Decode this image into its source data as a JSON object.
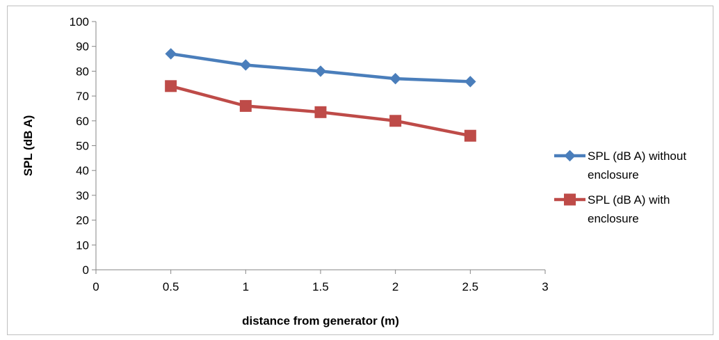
{
  "chart_data": {
    "type": "line",
    "title": "",
    "xlabel": "distance from generator (m)",
    "ylabel": "SPL (dB A)",
    "xlim": [
      0,
      3
    ],
    "ylim": [
      0,
      100
    ],
    "xticks": [
      0,
      0.5,
      1,
      1.5,
      2,
      2.5,
      3
    ],
    "yticks": [
      0,
      10,
      20,
      30,
      40,
      50,
      60,
      70,
      80,
      90,
      100
    ],
    "grid": false,
    "legend_position": "right",
    "series": [
      {
        "name": "SPL (dB A) without enclosure",
        "legend_lines": [
          "SPL (dB A) without",
          "enclosure"
        ],
        "color": "#4a7ebb",
        "marker": "diamond",
        "x": [
          0.5,
          1,
          1.5,
          2,
          2.5
        ],
        "y": [
          87,
          82.5,
          80,
          77,
          75.8
        ]
      },
      {
        "name": "SPL (dB A) with enclosure",
        "legend_lines": [
          "SPL (dB A) with",
          "enclosure"
        ],
        "color": "#be4b48",
        "marker": "square",
        "x": [
          0.5,
          1,
          1.5,
          2,
          2.5
        ],
        "y": [
          74,
          66,
          63.5,
          60,
          54
        ]
      }
    ]
  }
}
